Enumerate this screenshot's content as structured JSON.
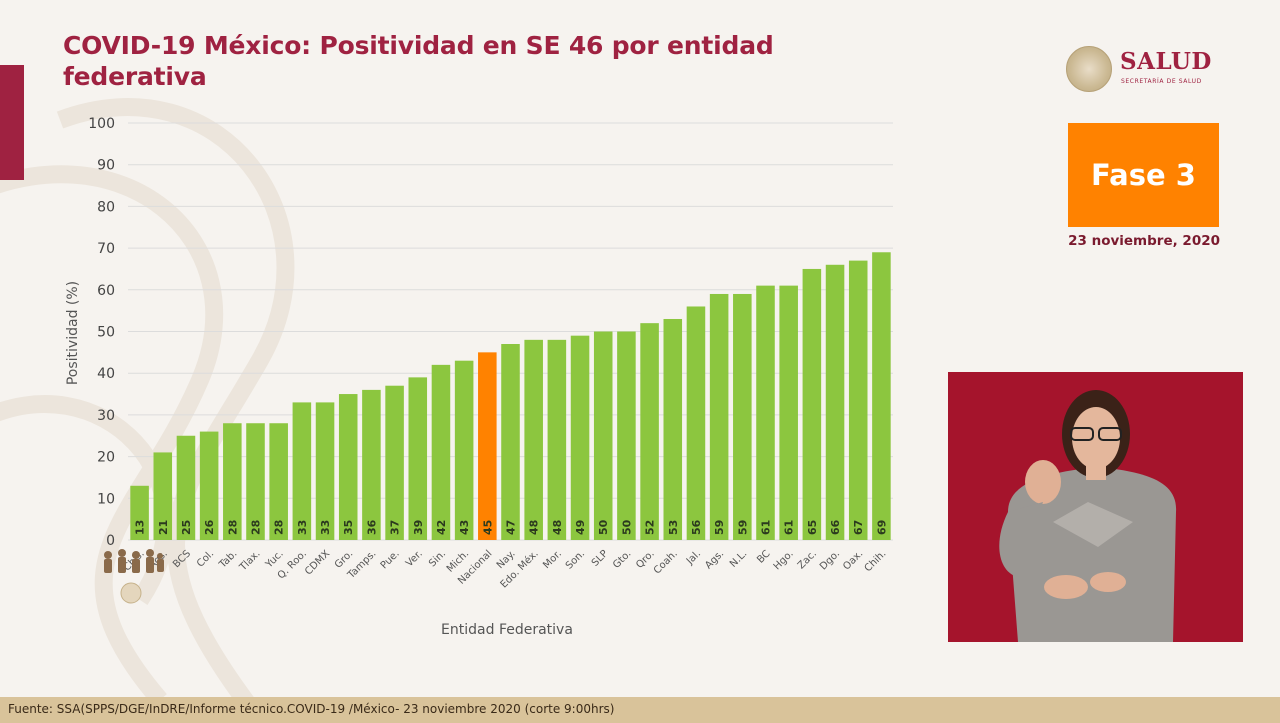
{
  "title": "COVID-19 México: Positividad en SE 46 por entidad federativa",
  "logo": {
    "text": "SALUD",
    "subtitle": "SECRETARÍA DE SALUD"
  },
  "fase": {
    "label": "Fase 3",
    "date": "23 noviembre, 2020"
  },
  "footer": "Fuente: SSA(SPPS/DGE/InDRE/Informe técnico.COVID-19 /México- 23 noviembre 2020 (corte 9:00hrs)",
  "colors": {
    "accent": "#9f2241",
    "bar": "#8cc63f",
    "highlight": "#ff8200",
    "fase": "#ff8200"
  },
  "chart_data": {
    "type": "bar",
    "title": "COVID-19 México: Positividad en SE 46 por entidad federativa",
    "xlabel": "Entidad Federativa",
    "ylabel": "Positividad (%)",
    "ylim": [
      0,
      100
    ],
    "yticks": [
      0,
      10,
      20,
      30,
      40,
      50,
      60,
      70,
      80,
      90,
      100
    ],
    "grid": true,
    "highlight_category": "Nacional",
    "categories": [
      "Chis.",
      "Ags.",
      "BCS",
      "Col.",
      "Tab.",
      "Tlax.",
      "Yuc.",
      "Q. Roo.",
      "CDMX",
      "Gro.",
      "Tamps.",
      "Pue.",
      "Ver.",
      "Sin.",
      "Mich.",
      "Nacional",
      "Nay.",
      "Edo. Méx.",
      "Mor.",
      "Son.",
      "SLP",
      "Gto.",
      "Qro.",
      "Coah.",
      "Jal.",
      "Ags.",
      "N.L.",
      "BC",
      "Hgo.",
      "Zac.",
      "Dgo.",
      "Oax.",
      "Chih."
    ],
    "values": [
      13,
      21,
      25,
      26,
      28,
      28,
      28,
      33,
      33,
      35,
      36,
      37,
      39,
      42,
      43,
      45,
      47,
      48,
      48,
      49,
      50,
      50,
      52,
      53,
      56,
      59,
      59,
      61,
      61,
      65,
      66,
      67,
      69
    ]
  }
}
